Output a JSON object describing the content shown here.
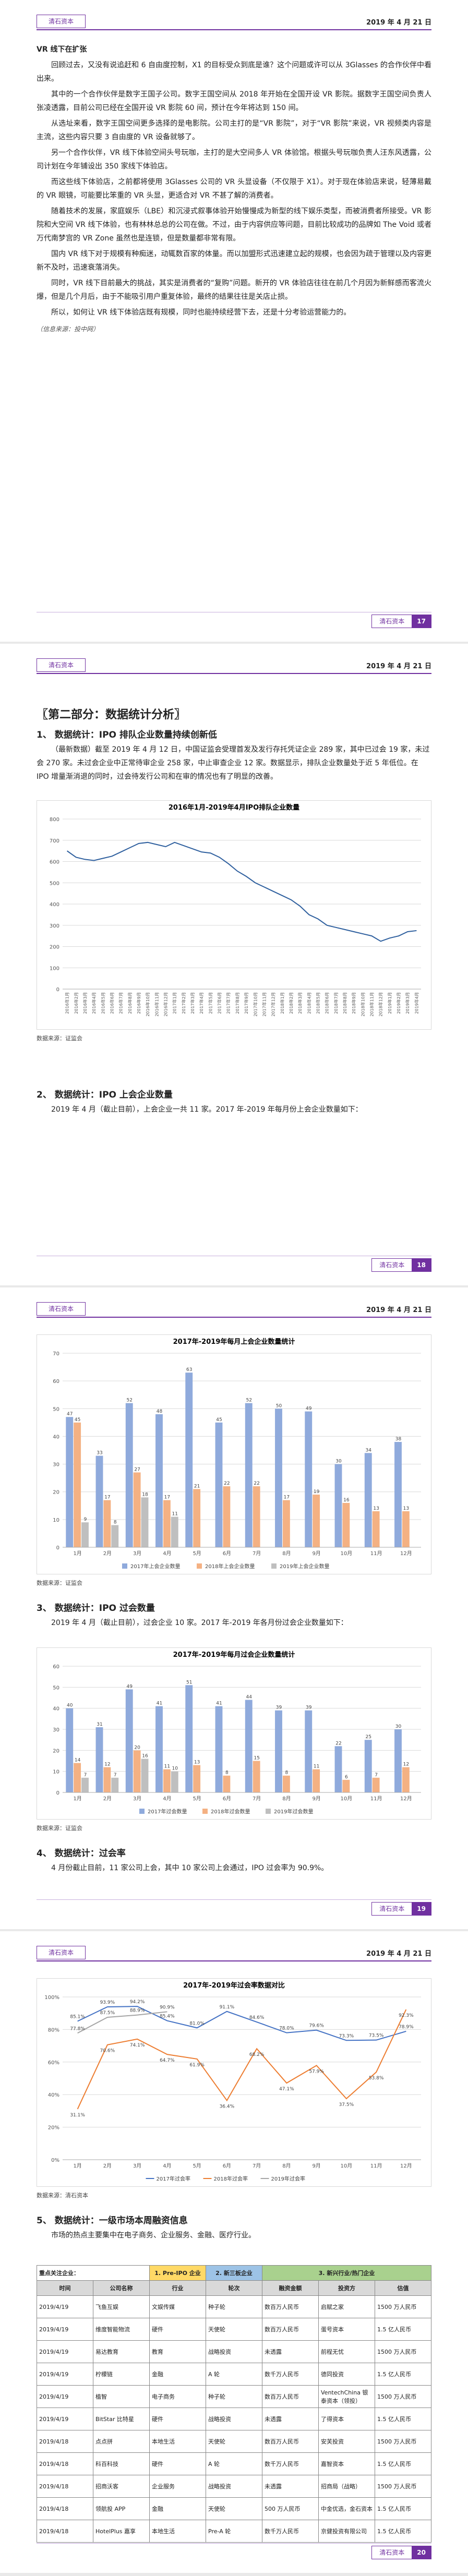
{
  "header": {
    "brand": "清石资本",
    "date": "2019 年 4 月 21 日"
  },
  "pages": [
    "17",
    "18",
    "19",
    "20"
  ],
  "article": {
    "title": "VR 线下在扩张",
    "paragraphs": [
      "回顾过去，又没有说追赶和 6 自由度控制，X1 的目标受众到底是谁？这个问题或许可以从 3Glasses 的合作伙伴中看出来。",
      "其中的一个合作伙伴是数字王国子公司。数字王国空间从 2018 年开始在全国开设 VR 影院。据数字王国空间负责人张凌透露，目前公司已经在全国开设 VR 影院 60 间，预计在今年将达到 150 间。",
      "从选址来看，数字王国空间更多选择的是电影院。公司主打的是“VR 影院”，对于“VR 影院”来说，VR 视频类内容是主流，这些内容只要 3 自由度的 VR 设备就够了。",
      "另一个合作伙伴，VR 线下体验空间头号玩咖，主打的是大空间多人 VR 体验馆。根据头号玩咖负责人汪东风透露，公司计划在今年铺设出 350 家线下体验店。",
      "而这些线下体验店，之前都将使用 3Glasses 公司的 VR 头显设备（不仅限于 X1）。对于现在体验店来说，轻薄易戴的 VR 眼镜，可能要比笨重的 VR 头显，更适合对 VR 不甚了解的消费者。",
      "随着技术的发展，家庭娱乐（LBE）和沉浸式叙事体验开始慢慢成为新型的线下娱乐类型，而被消费者所接受。VR 影院和大空间 VR 线下体验，也有林林总总的公司在做。不过，由于内容供应等问题，目前比较成功的品牌如 The Void 或者万代南梦宫的 VR Zone 虽然也是连锁，但是数量都非常有限。",
      "国内 VR 线下对于规模有种痴迷，动辄数百家的体量。而以加盟形式迅速建立起的规模，也会因为疏于管理以及内容更新不及时，迅速衰落消失。",
      "同时，VR 线下目前最大的挑战，其实是消费者的“复购”问题。新开的 VR 体验店往往在前几个月因为新鲜感而客流火爆，但是几个月后，由于不能吸引用户重复体验，最终的结果往往是关店止损。",
      "所以，如何让 VR 线下体验店既有规模，同时也能持续经营下去，还是十分考验运营能力的。"
    ],
    "source": "（信息来源：投中网）"
  },
  "part_title": "〖第二部分：数据统计分析〗",
  "sections": [
    {
      "heading": "1、 数据统计：IPO 排队企业数量持续创新低",
      "text": "（最新数据）截至 2019 年 4 月 12 日，中国证监会受理首发及发行存托凭证企业 289 家，其中已过会 19 家，未过会 270 家。未过会企业中正常待审企业 258 家，中止审查企业 12 家。数据显示，排队企业数量处于近 5 年低位。在 IPO 增量渐消退的同时，过会待发行公司和在审的情况也有了明显的改善。"
    },
    {
      "heading": "2、 数据统计：IPO 上会企业数量",
      "text": "2019 年 4 月（截止目前），上会企业一共 11 家。2017 年-2019 年每月份上会企业数量如下："
    },
    {
      "heading": "3、 数据统计：IPO 过会数量",
      "text": "2019 年 4 月（截止目前），过会企业 10 家。2017 年-2019 年各月份过会企业数量如下："
    },
    {
      "heading": "4、 数据统计：过会率",
      "text": "4 月份截止目前，11 家公司上会，其中 10 家公司上会通过，IPO 过会率为 90.9%。"
    },
    {
      "heading": "5、 数据统计：一级市场本周融资信息",
      "text": "市场的热点主要集中在电子商务、企业服务、金融、医疗行业。"
    }
  ],
  "chart_data": [
    {
      "type": "line",
      "title": "2016年1月-2019年4月IPO排队企业数量",
      "source": "数据来源：证监会",
      "categories": [
        "2016年1月",
        "2016年2月",
        "2016年3月",
        "2016年4月",
        "2016年5月",
        "2016年6月",
        "2016年7月",
        "2016年8月",
        "2016年9月",
        "2016年10月",
        "2016年11月",
        "2016年12月",
        "2017年1月",
        "2017年2月",
        "2017年3月",
        "2017年4月",
        "2017年5月",
        "2017年6月",
        "2017年7月",
        "2017年8月",
        "2017年9月",
        "2017年10月",
        "2017年11月",
        "2017年12月",
        "2018年1月",
        "2018年2月",
        "2018年3月",
        "2018年4月",
        "2018年5月",
        "2018年6月",
        "2018年7月",
        "2018年8月",
        "2018年9月",
        "2018年10月",
        "2018年11月",
        "2018年12月",
        "2019年1月",
        "2019年2月",
        "2019年3月",
        "2019年4月"
      ],
      "series": [
        {
          "color": "#2e5f9e",
          "values": [
            650,
            620,
            610,
            605,
            615,
            625,
            645,
            665,
            685,
            690,
            680,
            670,
            690,
            675,
            660,
            645,
            640,
            620,
            590,
            555,
            530,
            500,
            480,
            460,
            440,
            420,
            390,
            350,
            330,
            300,
            290,
            280,
            270,
            260,
            250,
            225,
            240,
            250,
            270,
            275
          ]
        }
      ],
      "ylim": [
        0,
        800
      ],
      "yticks": [
        0,
        100,
        200,
        300,
        400,
        500,
        600,
        700,
        800
      ],
      "grid": true
    },
    {
      "type": "bar",
      "title": "2017年-2019年每月上会企业数量统计",
      "source": "数据来源：证监会",
      "categories": [
        "1月",
        "2月",
        "3月",
        "4月",
        "5月",
        "6月",
        "7月",
        "8月",
        "9月",
        "10月",
        "11月",
        "12月"
      ],
      "series": [
        {
          "name": "2017年上会企业数量",
          "color": "#8faadc",
          "values": [
            47,
            33,
            52,
            48,
            63,
            45,
            52,
            50,
            49,
            30,
            34,
            38
          ]
        },
        {
          "name": "2018年上会企业数量",
          "color": "#f4b183",
          "values": [
            45,
            17,
            27,
            17,
            21,
            22,
            22,
            17,
            19,
            16,
            13,
            13
          ]
        },
        {
          "name": "2019年上会企业数量",
          "color": "#bfbfbf",
          "values": [
            9,
            8,
            18,
            11,
            null,
            null,
            null,
            null,
            null,
            null,
            null,
            null
          ]
        }
      ],
      "ylim": [
        0,
        70
      ],
      "yticks": [
        0,
        10,
        20,
        30,
        40,
        50,
        60,
        70
      ],
      "grid": true,
      "legend": "bottom"
    },
    {
      "type": "bar",
      "title": "2017年-2019年每月过会企业数量统计",
      "source": "数据来源：证监会",
      "categories": [
        "1月",
        "2月",
        "3月",
        "4月",
        "5月",
        "6月",
        "7月",
        "8月",
        "9月",
        "10月",
        "11月",
        "12月"
      ],
      "series": [
        {
          "name": "2017年过会数量",
          "color": "#8faadc",
          "values": [
            40,
            31,
            49,
            41,
            51,
            41,
            44,
            39,
            39,
            22,
            25,
            30
          ]
        },
        {
          "name": "2018年过会数量",
          "color": "#f4b183",
          "values": [
            14,
            12,
            20,
            11,
            13,
            8,
            15,
            8,
            11,
            6,
            7,
            12
          ]
        },
        {
          "name": "2019年过会数量",
          "color": "#bfbfbf",
          "values": [
            7,
            7,
            16,
            10,
            null,
            null,
            null,
            null,
            null,
            null,
            null,
            null
          ]
        }
      ],
      "ylim": [
        0,
        60
      ],
      "yticks": [
        0,
        10,
        20,
        30,
        40,
        50,
        60
      ],
      "grid": true,
      "legend": "bottom"
    },
    {
      "type": "line",
      "title": "2017年-2019年过会率数据对比",
      "source": "数据来源：清石资本",
      "categories": [
        "1月",
        "2月",
        "3月",
        "4月",
        "5月",
        "6月",
        "7月",
        "8月",
        "9月",
        "10月",
        "11月",
        "12月"
      ],
      "series": [
        {
          "name": "2017年过会率",
          "color": "#4472c4",
          "values": [
            85.1,
            93.9,
            94.2,
            85.4,
            81.0,
            91.1,
            84.6,
            78.0,
            79.6,
            73.3,
            73.5,
            78.9
          ],
          "value_labels": [
            "85.1%",
            "93.9%",
            "94.2%",
            "85.4%",
            "81.0%",
            "91.1%",
            "84.6%",
            "78.0%",
            "79.6%",
            "73.3%",
            "73.5%",
            "78.9%"
          ]
        },
        {
          "name": "2018年过会率",
          "color": "#ed7d31",
          "values": [
            31.1,
            70.6,
            74.1,
            64.7,
            61.9,
            36.4,
            68.2,
            47.1,
            57.9,
            37.5,
            53.8,
            92.3
          ],
          "value_labels": [
            "31.1%",
            "70.6%",
            "74.1%",
            "64.7%",
            "61.9%",
            "36.4%",
            "68.2%",
            "47.1%",
            "57.9%",
            "37.5%",
            "53.8%",
            "92.3%"
          ]
        },
        {
          "name": "2019年过会率",
          "color": "#a5a5a5",
          "values": [
            77.8,
            87.5,
            88.9,
            90.9,
            null,
            null,
            null,
            null,
            null,
            null,
            null,
            null
          ],
          "value_labels": [
            "77.8%",
            "87.5%",
            "88.9%",
            "90.9%",
            null,
            null,
            null,
            null,
            null,
            null,
            null,
            null
          ]
        }
      ],
      "ylim": [
        0,
        100
      ],
      "yticks": [
        {
          "value": 0,
          "label": "0%"
        },
        {
          "value": 20,
          "label": "20%"
        },
        {
          "value": 40,
          "label": "40%"
        },
        {
          "value": 60,
          "label": "60%"
        },
        {
          "value": 80,
          "label": "80%"
        },
        {
          "value": 100,
          "label": "100%"
        }
      ],
      "grid": true,
      "legend": "bottom"
    }
  ],
  "table": {
    "focus_label": "重点关注企业：",
    "focus": [
      "1. Pre-IPO 企业",
      "2. 新三板企业",
      "3. 新兴行业/热门企业"
    ],
    "columns": [
      "时间",
      "公司名称",
      "行业",
      "轮次",
      "融资金额",
      "投资方",
      "估值"
    ],
    "rows": [
      [
        "2019/4/19",
        "飞鱼互娱",
        "文娱传媒",
        "种子轮",
        "数百万人民币",
        "启赋之家",
        "1500 万人民币"
      ],
      [
        "2019/4/19",
        "维度智能物流",
        "硬件",
        "天使轮",
        "数百万人民币",
        "蛋号资本",
        "1.5 亿人民币"
      ],
      [
        "2019/4/19",
        "易达教育",
        "教育",
        "战略投资",
        "未透露",
        "前程无忧",
        "1500 万人民币"
      ],
      [
        "2019/4/19",
        "柠檬链",
        "金融",
        "A 轮",
        "数千万人民币",
        "德同投资",
        "1.5 亿人民币"
      ],
      [
        "2019/4/19",
        "植智",
        "电子商务",
        "种子轮",
        "数百万人民币",
        "VentechChina 银泰资本（领投）",
        "1500 万人民币"
      ],
      [
        "2019/4/19",
        "BitStar 比特星",
        "硬件",
        "战略投资",
        "未透露",
        "了得资本",
        "1.5 亿人民币"
      ],
      [
        "2019/4/18",
        "点点拼",
        "本地生活",
        "天使轮",
        "数百万人民币",
        "安芙投资",
        "1500 万人民币"
      ],
      [
        "2019/4/18",
        "科百科技",
        "硬件",
        "A 轮",
        "数千万人民币",
        "嘉智资本",
        "1.5 亿人民币"
      ],
      [
        "2019/4/18",
        "招商沃客",
        "企业服务",
        "战略投资",
        "未透露",
        "招商局（战略）",
        "1500 万人民币"
      ],
      [
        "2019/4/18",
        "领航投 APP",
        "金融",
        "天使轮",
        "500 万人民币",
        "中金优选，金石资本",
        "1.5 亿人民币"
      ],
      [
        "2019/4/18",
        "HotelPlus 嘉享",
        "本地生活",
        "Pre-A 轮",
        "数千万人民币",
        "京健投资有限公司",
        "1.5 亿人民币"
      ]
    ]
  }
}
